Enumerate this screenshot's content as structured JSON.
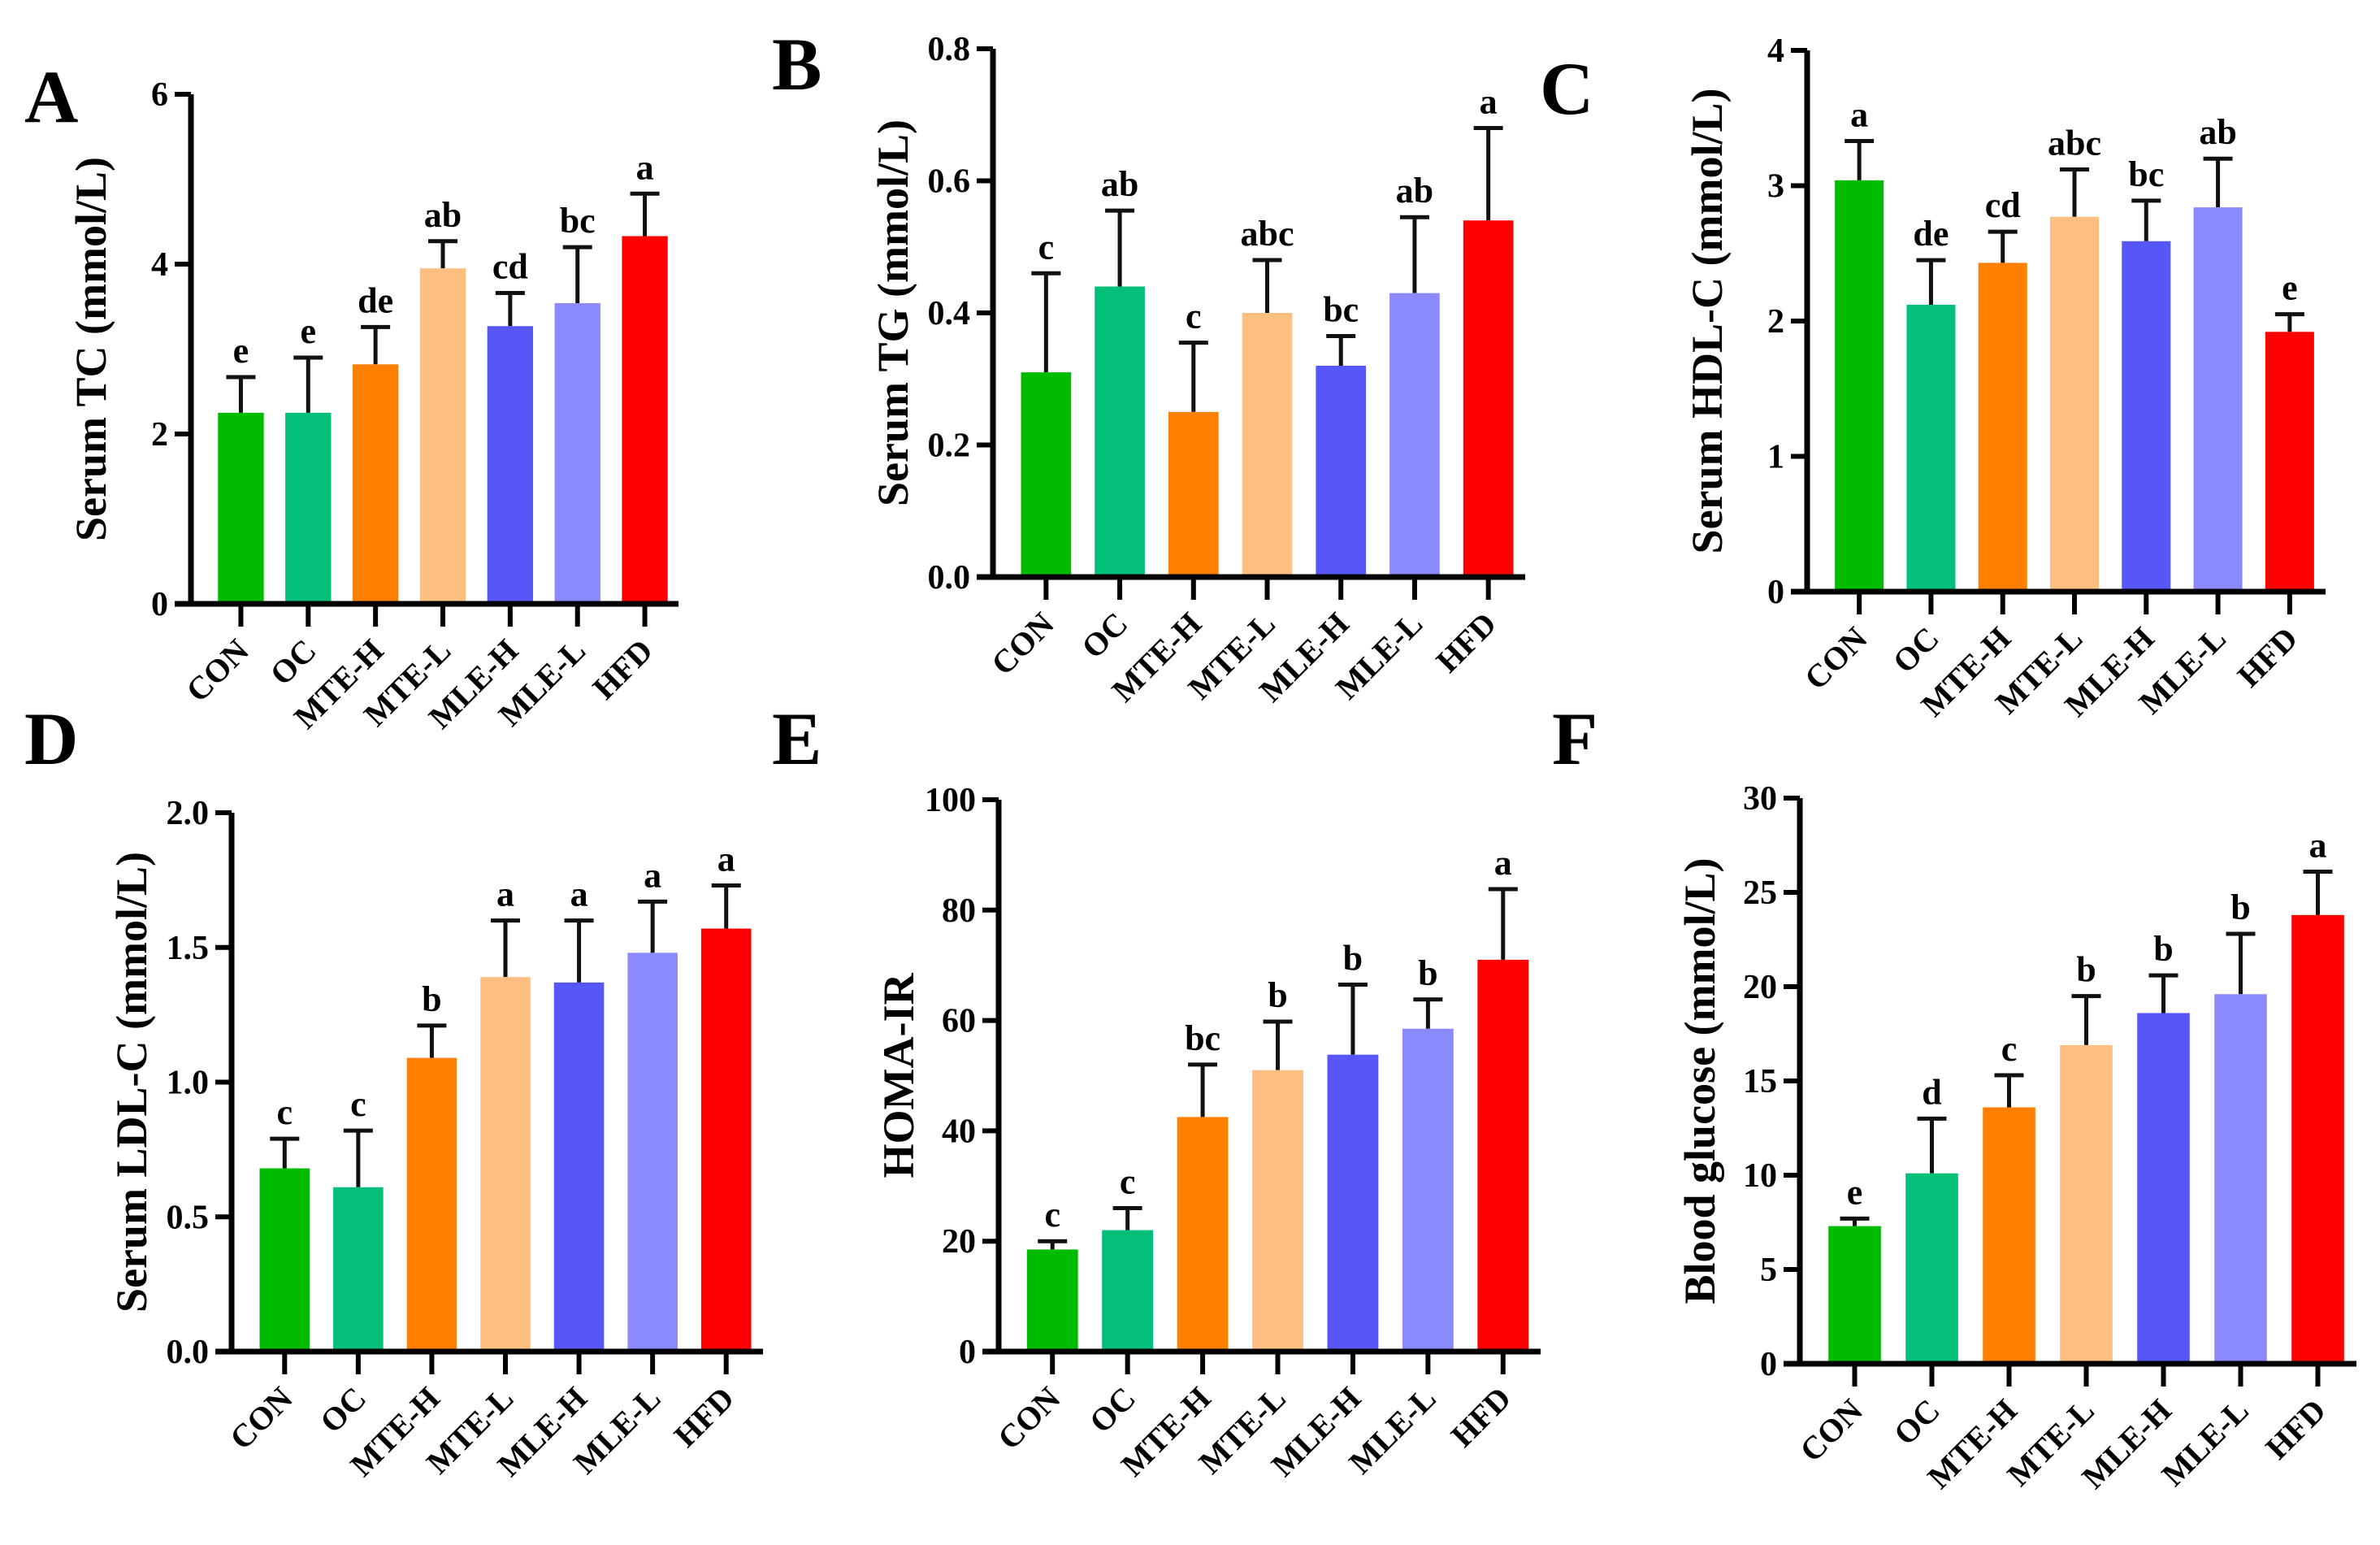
{
  "chart_data": [
    {
      "panel": "A",
      "type": "bar",
      "ylabel": "Serum TC (mmol/L)",
      "ylim": [
        0,
        6
      ],
      "yticks": [
        "0",
        "2",
        "4",
        "6"
      ],
      "categories": [
        "CON",
        "OC",
        "MTE-H",
        "MTE-L",
        "MLE-H",
        "MLE-L",
        "HFD"
      ],
      "values": [
        2.25,
        2.25,
        2.82,
        3.95,
        3.27,
        3.54,
        4.33
      ],
      "error_upper": [
        2.67,
        2.9,
        3.26,
        4.27,
        3.66,
        4.2,
        4.83
      ],
      "significance": [
        "e",
        "e",
        "de",
        "ab",
        "cd",
        "bc",
        "a"
      ]
    },
    {
      "panel": "B",
      "type": "bar",
      "ylabel": "Serum TG (mmol/L)",
      "ylim": [
        0,
        0.8
      ],
      "yticks": [
        "0.0",
        "0.2",
        "0.4",
        "0.6",
        "0.8"
      ],
      "categories": [
        "CON",
        "OC",
        "MTE-H",
        "MTE-L",
        "MLE-H",
        "MLE-L",
        "HFD"
      ],
      "values": [
        0.31,
        0.44,
        0.25,
        0.4,
        0.32,
        0.43,
        0.54
      ],
      "error_upper": [
        0.46,
        0.555,
        0.355,
        0.48,
        0.365,
        0.545,
        0.68
      ],
      "significance": [
        "c",
        "ab",
        "c",
        "abc",
        "bc",
        "ab",
        "a"
      ]
    },
    {
      "panel": "C",
      "type": "bar",
      "ylabel": "Serum HDL-C (mmol/L)",
      "ylim": [
        0,
        4
      ],
      "yticks": [
        "0",
        "1",
        "2",
        "3",
        "4"
      ],
      "categories": [
        "CON",
        "OC",
        "MTE-H",
        "MTE-L",
        "MLE-H",
        "MLE-L",
        "HFD"
      ],
      "values": [
        3.04,
        2.12,
        2.43,
        2.77,
        2.59,
        2.84,
        1.92
      ],
      "error_upper": [
        3.33,
        2.45,
        2.66,
        3.12,
        2.89,
        3.2,
        2.05
      ],
      "significance": [
        "a",
        "de",
        "cd",
        "abc",
        "bc",
        "ab",
        "e"
      ]
    },
    {
      "panel": "D",
      "type": "bar",
      "ylabel": "Serum LDL-C (mmol/L)",
      "ylim": [
        0,
        2
      ],
      "yticks": [
        "0.0",
        "0.5",
        "1.0",
        "1.5",
        "2.0"
      ],
      "categories": [
        "CON",
        "OC",
        "MTE-H",
        "MTE-L",
        "MLE-H",
        "MLE-L",
        "HFD"
      ],
      "values": [
        0.68,
        0.61,
        1.09,
        1.39,
        1.37,
        1.48,
        1.57
      ],
      "error_upper": [
        0.79,
        0.82,
        1.21,
        1.6,
        1.6,
        1.67,
        1.73
      ],
      "significance": [
        "c",
        "c",
        "b",
        "a",
        "a",
        "a",
        "a"
      ]
    },
    {
      "panel": "E",
      "type": "bar",
      "ylabel": "HOMA-IR",
      "ylim": [
        0,
        100
      ],
      "yticks": [
        "0",
        "20",
        "40",
        "60",
        "80",
        "100"
      ],
      "categories": [
        "CON",
        "OC",
        "MTE-H",
        "MTE-L",
        "MLE-H",
        "MLE-L",
        "HFD"
      ],
      "values": [
        18.5,
        22,
        42.5,
        51,
        53.8,
        58.5,
        71
      ],
      "error_upper": [
        20,
        26,
        52,
        59.8,
        66.5,
        63.8,
        83.8
      ],
      "significance": [
        "c",
        "c",
        "bc",
        "b",
        "b",
        "b",
        "a"
      ]
    },
    {
      "panel": "F",
      "type": "bar",
      "ylabel": "Blood glucose (mmol/L)",
      "ylim": [
        0,
        30
      ],
      "yticks": [
        "0",
        "5",
        "10",
        "15",
        "20",
        "25",
        "30"
      ],
      "categories": [
        "CON",
        "OC",
        "MTE-H",
        "MTE-L",
        "MLE-H",
        "MLE-L",
        "HFD"
      ],
      "values": [
        7.3,
        10.1,
        13.6,
        16.9,
        18.6,
        19.6,
        23.8
      ],
      "error_upper": [
        7.7,
        13,
        15.3,
        19.5,
        20.6,
        22.8,
        26.1
      ],
      "significance": [
        "e",
        "d",
        "c",
        "b",
        "b",
        "b",
        "a"
      ]
    }
  ],
  "colors": [
    "#00bb00",
    "#03bf7a",
    "#ff7f00",
    "#ffbf80",
    "#5757f7",
    "#8a8afd",
    "#ff0000"
  ]
}
